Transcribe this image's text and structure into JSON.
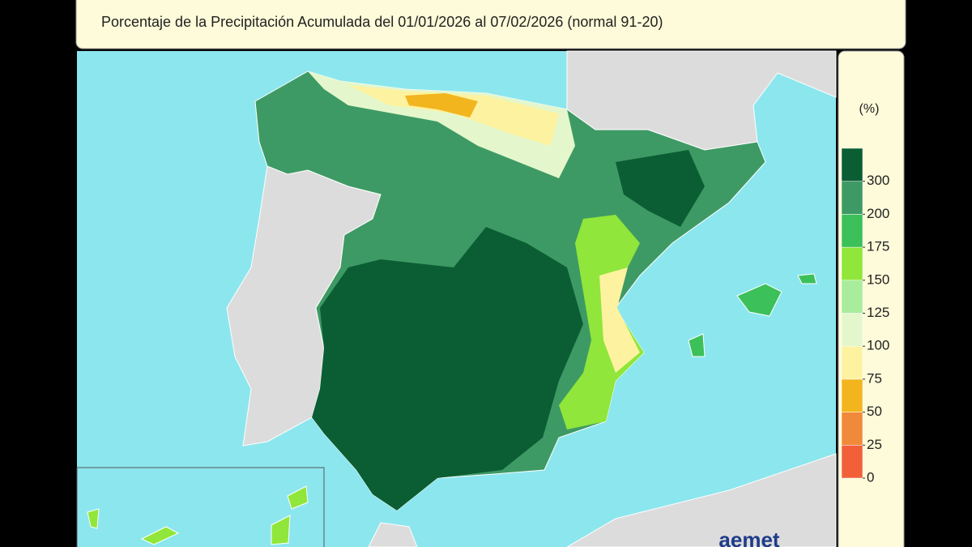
{
  "map": {
    "title": "Porcentaje de la Precipitación Acumulada  del 01/01/2026 al 07/02/2026  (normal 91-20)",
    "legend": {
      "unit": "(%)",
      "ticks": [
        0,
        25,
        50,
        75,
        100,
        125,
        150,
        175,
        200,
        300
      ],
      "colors": [
        "#f2603a",
        "#f08a3a",
        "#f2b51e",
        "#fdf2a0",
        "#e4f7cc",
        "#a8ec9c",
        "#90e63a",
        "#3cc05a",
        "#3e9a64",
        "#0b5e34"
      ]
    },
    "logo": "aemet"
  }
}
